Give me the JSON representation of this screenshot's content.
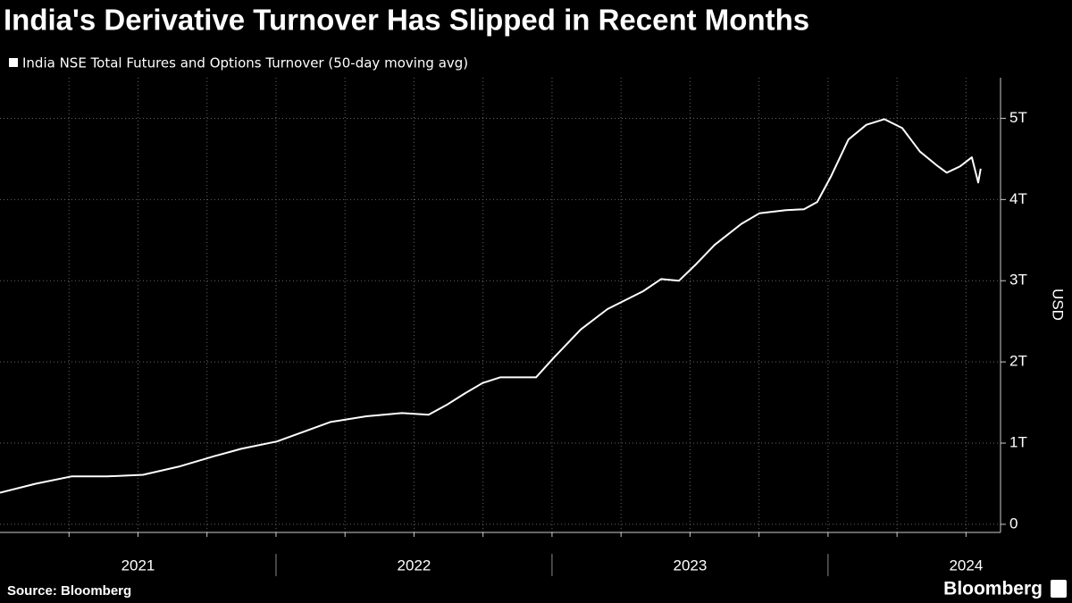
{
  "chart_data": {
    "type": "line",
    "title": "India's Derivative Turnover Has Slipped in Recent Months",
    "source": "Source: Bloomberg",
    "brand": "Bloomberg",
    "y_label": "USD",
    "series": [
      {
        "name": "India NSE Total Futures and Options Turnover (50-day moving avg)",
        "color": "#ffffff",
        "x": [
          2021.0,
          2021.129,
          2021.259,
          2021.388,
          2021.518,
          2021.647,
          2021.777,
          2021.874,
          2022.003,
          2022.1,
          2022.197,
          2022.327,
          2022.456,
          2022.553,
          2022.618,
          2022.683,
          2022.748,
          2022.812,
          2022.942,
          2023.006,
          2023.104,
          2023.201,
          2023.33,
          2023.395,
          2023.46,
          2023.524,
          2023.589,
          2023.686,
          2023.751,
          2023.848,
          2023.913,
          2023.961,
          2024.01,
          2024.074,
          2024.139,
          2024.204,
          2024.269,
          2024.333,
          2024.398,
          2024.43,
          2024.479,
          2024.521,
          2024.544,
          2024.553
        ],
        "values": [
          0.39,
          0.5,
          0.59,
          0.59,
          0.61,
          0.71,
          0.84,
          0.93,
          1.02,
          1.14,
          1.26,
          1.33,
          1.37,
          1.35,
          1.47,
          1.61,
          1.74,
          1.81,
          1.81,
          2.05,
          2.4,
          2.65,
          2.87,
          3.02,
          3.0,
          3.21,
          3.44,
          3.7,
          3.83,
          3.87,
          3.88,
          3.97,
          4.28,
          4.74,
          4.92,
          4.99,
          4.88,
          4.59,
          4.41,
          4.33,
          4.41,
          4.52,
          4.21,
          4.38
        ]
      }
    ],
    "xlim": [
      2021,
      2024.625
    ],
    "xticks": [
      {
        "value": 2021.5,
        "label": "2021"
      },
      {
        "value": 2022.5,
        "label": "2022"
      },
      {
        "value": 2023.5,
        "label": "2023"
      },
      {
        "value": 2024.5,
        "label": "2024"
      }
    ],
    "year_boundaries": [
      2022,
      2023,
      2024
    ],
    "xgrid": [
      2021.25,
      2021.5,
      2021.75,
      2022,
      2022.25,
      2022.5,
      2022.75,
      2023,
      2023.25,
      2023.5,
      2023.75,
      2024,
      2024.25,
      2024.5
    ],
    "ylim": [
      -0.1,
      5.5
    ],
    "yticks": [
      0,
      {
        "value": 1,
        "label": "1T"
      },
      {
        "value": 2,
        "label": "2T"
      },
      {
        "value": 3,
        "label": "3T"
      },
      {
        "value": 4,
        "label": "4T"
      },
      {
        "value": 5,
        "label": "5T"
      }
    ],
    "grid": true
  }
}
